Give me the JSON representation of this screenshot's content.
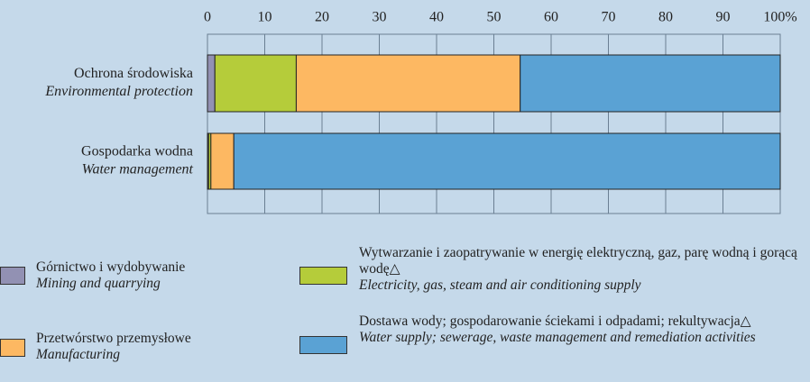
{
  "chart_data": {
    "type": "bar",
    "orientation": "horizontal",
    "stacked": true,
    "categories": [
      "Ochrona środowiska",
      "Gospodarka wodna"
    ],
    "categories_en": [
      "Environmental protection",
      "Water management"
    ],
    "series": [
      {
        "name": "Górnictwo i wydobywanie",
        "name_en": "Mining and quarrying",
        "color": "#9291b3",
        "values": [
          1.3,
          0.2
        ]
      },
      {
        "name": "Wytwarzanie i zaopatrywanie w energię elektryczną, gaz, parę wodną i gorącą wodę△",
        "name_en": "Electricity, gas, steam and air conditioning supply",
        "color": "#b5cc3a",
        "values": [
          14.2,
          0.4
        ]
      },
      {
        "name": "Przetwórstwo przemysłowe",
        "name_en": "Manufacturing",
        "color": "#fdb862",
        "values": [
          39.1,
          4.0
        ]
      },
      {
        "name": "Dostawa wody; gospodarowanie ściekami i odpadami; rekultywacja△",
        "name_en": "Water supply; sewerage, waste management and remediation activities",
        "color": "#5aa2d4",
        "values": [
          45.4,
          95.4
        ]
      }
    ],
    "xlim": [
      0,
      100
    ],
    "xticks": [
      0,
      10,
      20,
      30,
      40,
      50,
      60,
      70,
      80,
      90,
      {
        "value": 100,
        "label": "100%"
      }
    ],
    "grid": true
  }
}
